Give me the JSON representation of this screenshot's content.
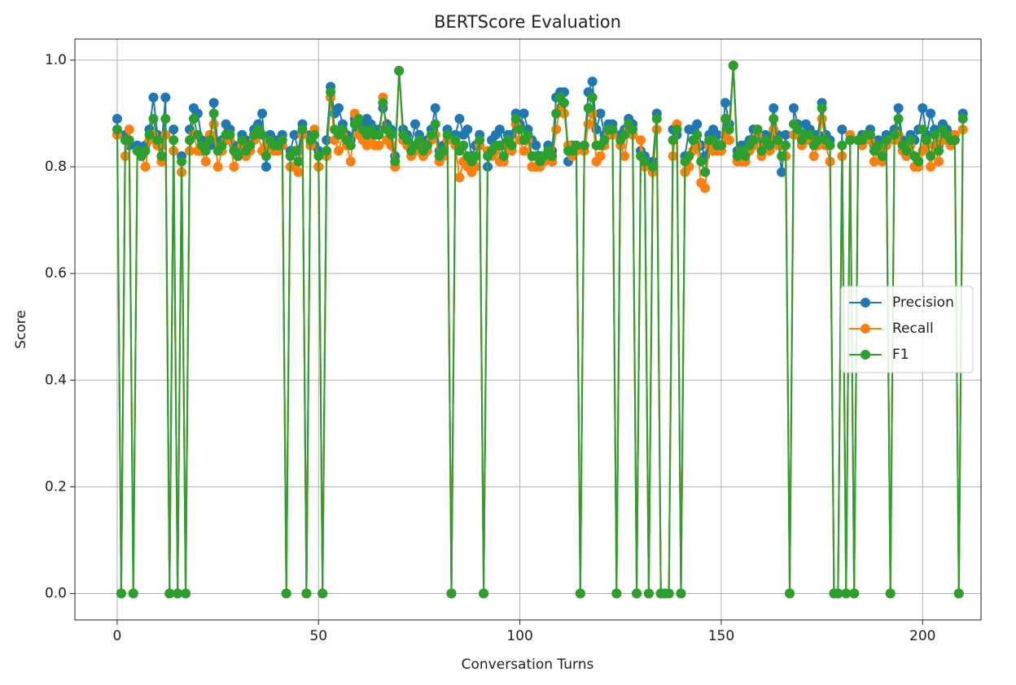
{
  "chart_data": {
    "type": "line",
    "title": "BERTScore Evaluation",
    "xlabel": "Conversation Turns",
    "ylabel": "Score",
    "xlim": [
      -10.5,
      214.5
    ],
    "xticks": [
      0,
      50,
      100,
      150,
      200
    ],
    "ylim": [
      -0.0495,
      1.0395
    ],
    "yticks": [
      {
        "value": 0,
        "label": "0.0"
      },
      0.2,
      0.4,
      0.6,
      0.8,
      {
        "value": 1,
        "label": "1.0"
      }
    ],
    "grid": true,
    "legend": "center right",
    "x": [
      0,
      1,
      2,
      3,
      4,
      5,
      6,
      7,
      8,
      9,
      10,
      11,
      12,
      13,
      14,
      15,
      16,
      17,
      18,
      19,
      20,
      21,
      22,
      23,
      24,
      25,
      26,
      27,
      28,
      29,
      30,
      31,
      32,
      33,
      34,
      35,
      36,
      37,
      38,
      39,
      40,
      41,
      42,
      43,
      44,
      45,
      46,
      47,
      48,
      49,
      50,
      51,
      52,
      53,
      54,
      55,
      56,
      57,
      58,
      59,
      60,
      61,
      62,
      63,
      64,
      65,
      66,
      67,
      68,
      69,
      70,
      71,
      72,
      73,
      74,
      75,
      76,
      77,
      78,
      79,
      80,
      81,
      82,
      83,
      84,
      85,
      86,
      87,
      88,
      89,
      90,
      91,
      92,
      93,
      94,
      95,
      96,
      97,
      98,
      99,
      100,
      101,
      102,
      103,
      104,
      105,
      106,
      107,
      108,
      109,
      110,
      111,
      112,
      113,
      114,
      115,
      116,
      117,
      118,
      119,
      120,
      121,
      122,
      123,
      124,
      125,
      126,
      127,
      128,
      129,
      130,
      131,
      132,
      133,
      134,
      135,
      136,
      137,
      138,
      139,
      140,
      141,
      142,
      143,
      144,
      145,
      146,
      147,
      148,
      149,
      150,
      151,
      152,
      153,
      154,
      155,
      156,
      157,
      158,
      159,
      160,
      161,
      162,
      163,
      164,
      165,
      166,
      167,
      168,
      169,
      170,
      171,
      172,
      173,
      174,
      175,
      176,
      177,
      178,
      179,
      180,
      181,
      182,
      183,
      184,
      185,
      186,
      187,
      188,
      189,
      190,
      191,
      192,
      193,
      194,
      195,
      196,
      197,
      198,
      199,
      200,
      201,
      202,
      203,
      204,
      205,
      206,
      207,
      208,
      209,
      210
    ],
    "series": [
      {
        "name": "Precision",
        "color": "#1f77b4",
        "values": [
          0.89,
          0,
          0.86,
          0.84,
          0,
          0.84,
          0.83,
          0.84,
          0.87,
          0.93,
          0.86,
          0.84,
          0.93,
          0,
          0.87,
          0,
          0.82,
          0,
          0.87,
          0.91,
          0.9,
          0.85,
          0.84,
          0.84,
          0.92,
          0.84,
          0.85,
          0.88,
          0.87,
          0.84,
          0.83,
          0.86,
          0.85,
          0.84,
          0.87,
          0.88,
          0.9,
          0.8,
          0.86,
          0.85,
          0.85,
          0.86,
          0,
          0.83,
          0.86,
          0.83,
          0.88,
          0,
          0.86,
          0.84,
          0.83,
          0,
          0.85,
          0.95,
          0.9,
          0.91,
          0.88,
          0.86,
          0.85,
          0.89,
          0.87,
          0.88,
          0.89,
          0.88,
          0.87,
          0.87,
          0.91,
          0.88,
          0.87,
          0.82,
          0.98,
          0.87,
          0.86,
          0.84,
          0.88,
          0.86,
          0.84,
          0.85,
          0.87,
          0.91,
          0.83,
          0.84,
          0.87,
          0,
          0.86,
          0.89,
          0.86,
          0.87,
          0.82,
          0.84,
          0.86,
          0,
          0.8,
          0.85,
          0.86,
          0.87,
          0.84,
          0.86,
          0.86,
          0.9,
          0.88,
          0.9,
          0.87,
          0.85,
          0.84,
          0.82,
          0.82,
          0.84,
          0.83,
          0.93,
          0.94,
          0.94,
          0.81,
          0.84,
          0.84,
          0,
          0.84,
          0.94,
          0.96,
          0.87,
          0.9,
          0.86,
          0.88,
          0.88,
          0,
          0.86,
          0.87,
          0.89,
          0.88,
          0,
          0.83,
          0.82,
          0,
          0.81,
          0.9,
          0,
          0,
          0,
          0.87,
          0.86,
          0,
          0.82,
          0.87,
          0.87,
          0.88,
          0.84,
          0.82,
          0.86,
          0.87,
          0.86,
          0.84,
          0.92,
          0.88,
          0.99,
          0.83,
          0.84,
          0.84,
          0.85,
          0.87,
          0.87,
          0.85,
          0.86,
          0.85,
          0.91,
          0.86,
          0.79,
          0.86,
          0,
          0.91,
          0.88,
          0.86,
          0.88,
          0.87,
          0.86,
          0.86,
          0.92,
          0.86,
          0.85,
          0,
          0,
          0.87,
          0,
          0.85,
          0,
          0.85,
          0.86,
          0.86,
          0.87,
          0.84,
          0.85,
          0.84,
          0.86,
          0,
          0.87,
          0.91,
          0.85,
          0.84,
          0.86,
          0.85,
          0.87,
          0.91,
          0.86,
          0.9,
          0.87,
          0.84,
          0.88,
          0.87,
          0.86,
          0.85,
          0,
          0.9
        ]
      },
      {
        "name": "Recall",
        "color": "#ff7f0e",
        "values": [
          0.86,
          0,
          0.82,
          0.87,
          0,
          0.83,
          0.82,
          0.8,
          0.85,
          0.86,
          0.84,
          0.81,
          0.86,
          0,
          0.83,
          0,
          0.79,
          0,
          0.83,
          0.86,
          0.83,
          0.83,
          0.81,
          0.86,
          0.88,
          0.8,
          0.83,
          0.85,
          0.85,
          0.8,
          0.82,
          0.84,
          0.82,
          0.83,
          0.85,
          0.86,
          0.83,
          0.84,
          0.84,
          0.83,
          0.83,
          0.84,
          0,
          0.8,
          0.8,
          0.79,
          0.86,
          0,
          0.84,
          0.87,
          0.8,
          0,
          0.82,
          0.93,
          0.85,
          0.83,
          0.86,
          0.84,
          0.81,
          0.9,
          0.86,
          0.85,
          0.84,
          0.85,
          0.84,
          0.84,
          0.93,
          0.85,
          0.84,
          0.8,
          0.98,
          0.85,
          0.84,
          0.82,
          0.83,
          0.84,
          0.82,
          0.83,
          0.85,
          0.86,
          0.81,
          0.82,
          0.85,
          0,
          0.84,
          0.78,
          0.81,
          0.8,
          0.79,
          0.8,
          0.84,
          0,
          0.83,
          0.82,
          0.83,
          0.81,
          0.81,
          0.84,
          0.83,
          0.88,
          0.85,
          0.83,
          0.85,
          0.8,
          0.8,
          0.8,
          0.81,
          0.82,
          0.81,
          0.87,
          0.91,
          0.9,
          0.84,
          0.82,
          0.83,
          0,
          0.83,
          0.88,
          0.9,
          0.81,
          0.82,
          0.84,
          0.86,
          0.86,
          0,
          0.84,
          0.82,
          0.87,
          0.86,
          0,
          0.85,
          0.8,
          0,
          0.79,
          0.87,
          0,
          0,
          0,
          0.82,
          0.88,
          0,
          0.79,
          0.8,
          0.83,
          0.84,
          0.77,
          0.76,
          0.84,
          0.83,
          0.83,
          0.83,
          0.86,
          0.85,
          0.99,
          0.81,
          0.81,
          0.81,
          0.83,
          0.84,
          0.86,
          0.82,
          0.84,
          0.83,
          0.87,
          0.84,
          0.84,
          0.82,
          0,
          0.86,
          0.86,
          0.84,
          0.85,
          0.85,
          0.82,
          0.84,
          0.89,
          0.84,
          0.81,
          0,
          0,
          0.82,
          0,
          0.86,
          0,
          0.85,
          0.84,
          0.86,
          0.85,
          0.81,
          0.83,
          0.81,
          0.84,
          0,
          0.85,
          0.86,
          0.83,
          0.82,
          0.84,
          0.8,
          0.8,
          0.83,
          0.84,
          0.8,
          0.84,
          0.81,
          0.85,
          0.85,
          0.84,
          0.86,
          0,
          0.87
        ]
      },
      {
        "name": "F1",
        "color": "#2ca02c",
        "values": [
          0.87,
          0,
          0.85,
          0.85,
          0,
          0.83,
          0.82,
          0.83,
          0.86,
          0.89,
          0.85,
          0.82,
          0.89,
          0,
          0.85,
          0,
          0.81,
          0,
          0.85,
          0.89,
          0.86,
          0.84,
          0.83,
          0.85,
          0.9,
          0.83,
          0.84,
          0.86,
          0.86,
          0.83,
          0.82,
          0.85,
          0.83,
          0.84,
          0.86,
          0.87,
          0.86,
          0.82,
          0.85,
          0.84,
          0.84,
          0.85,
          0,
          0.82,
          0.83,
          0.81,
          0.87,
          0,
          0.85,
          0.86,
          0.82,
          0,
          0.83,
          0.94,
          0.87,
          0.86,
          0.87,
          0.85,
          0.84,
          0.88,
          0.89,
          0.87,
          0.86,
          0.87,
          0.86,
          0.86,
          0.92,
          0.87,
          0.86,
          0.81,
          0.98,
          0.86,
          0.85,
          0.83,
          0.84,
          0.85,
          0.83,
          0.84,
          0.86,
          0.88,
          0.82,
          0.83,
          0.86,
          0,
          0.85,
          0.83,
          0.84,
          0.82,
          0.81,
          0.82,
          0.85,
          0,
          0.82,
          0.83,
          0.84,
          0.84,
          0.82,
          0.85,
          0.84,
          0.89,
          0.87,
          0.85,
          0.86,
          0.82,
          0.82,
          0.81,
          0.82,
          0.83,
          0.82,
          0.9,
          0.93,
          0.92,
          0.83,
          0.83,
          0.84,
          0,
          0.84,
          0.91,
          0.93,
          0.84,
          0.84,
          0.85,
          0.87,
          0.87,
          0,
          0.85,
          0.86,
          0.88,
          0.87,
          0,
          0.82,
          0.81,
          0,
          0.8,
          0.89,
          0,
          0,
          0,
          0.85,
          0.87,
          0,
          0.81,
          0.82,
          0.85,
          0.86,
          0.81,
          0.79,
          0.85,
          0.85,
          0.84,
          0.84,
          0.89,
          0.87,
          0.99,
          0.82,
          0.83,
          0.82,
          0.84,
          0.85,
          0.87,
          0.83,
          0.85,
          0.84,
          0.89,
          0.85,
          0.82,
          0.84,
          0,
          0.88,
          0.87,
          0.85,
          0.86,
          0.86,
          0.84,
          0.85,
          0.91,
          0.85,
          0.84,
          0,
          0,
          0.84,
          0,
          0.85,
          0,
          0.85,
          0.85,
          0.86,
          0.86,
          0.83,
          0.84,
          0.82,
          0.85,
          0,
          0.86,
          0.89,
          0.84,
          0.83,
          0.85,
          0.82,
          0.81,
          0.87,
          0.85,
          0.82,
          0.86,
          0.83,
          0.87,
          0.86,
          0.85,
          0.85,
          0,
          0.89
        ]
      }
    ]
  }
}
